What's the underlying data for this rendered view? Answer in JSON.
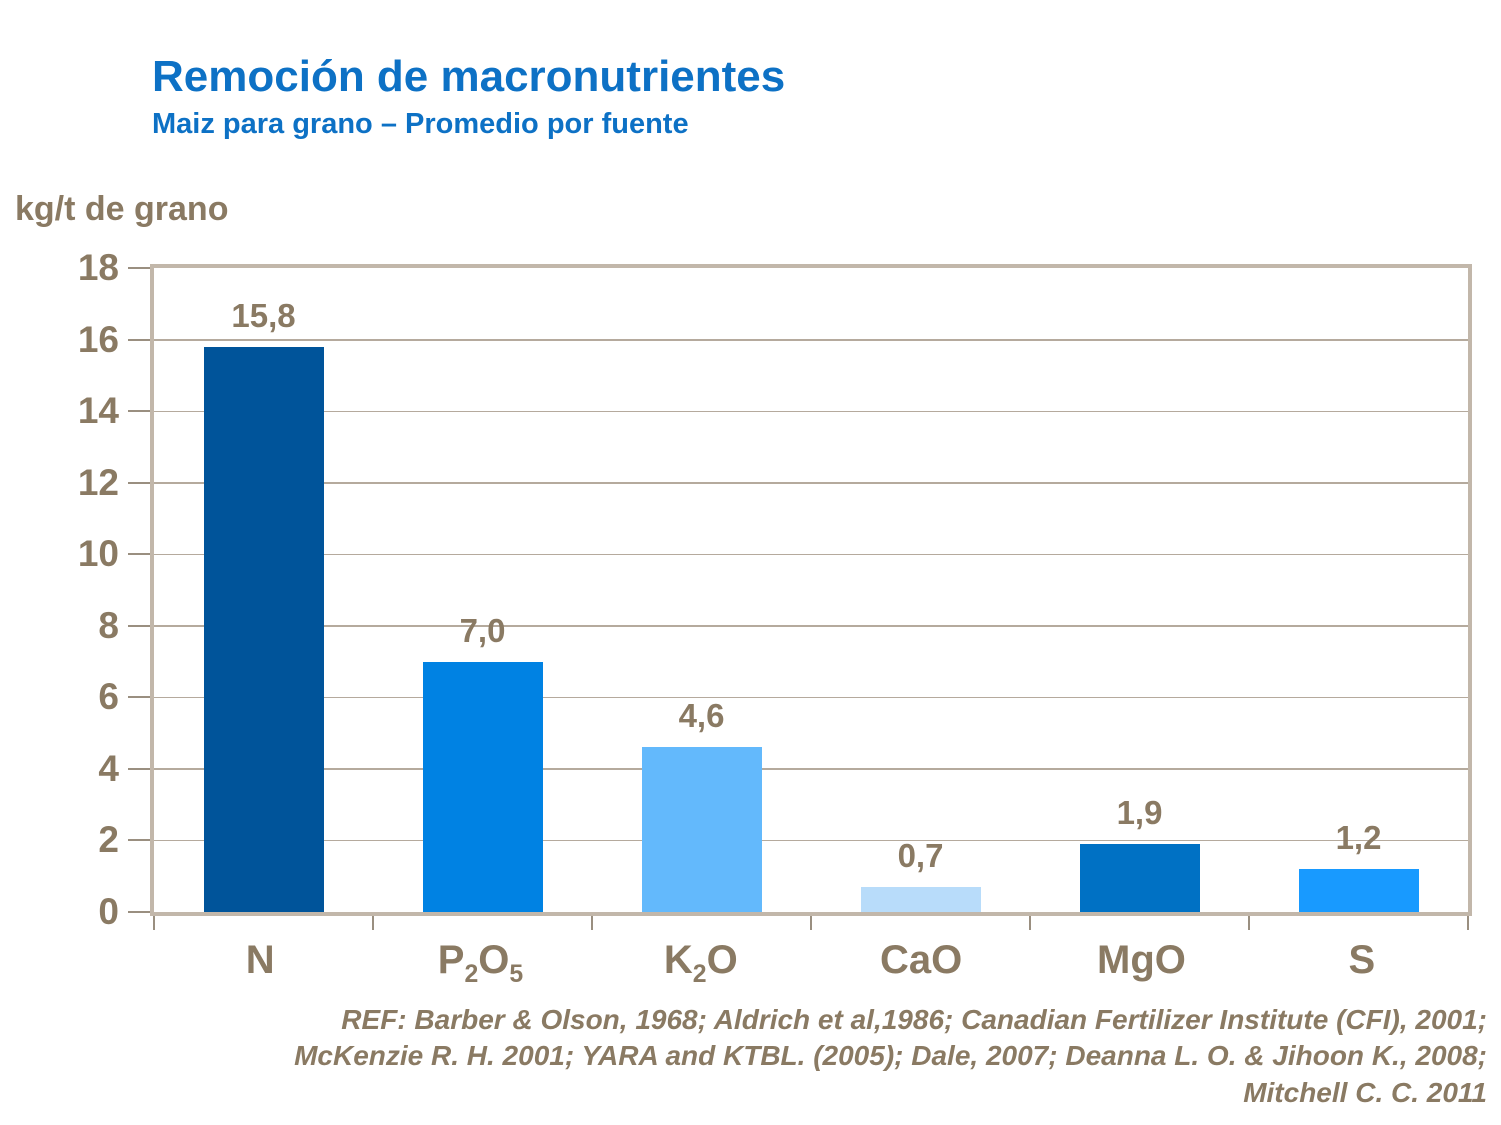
{
  "header": {
    "title": "Remoción de macronutrientes",
    "subtitle": "Maiz para grano – Promedio por fuente"
  },
  "colors": {
    "title_blue": "#0d71c5",
    "text_brown": "#8a7a63",
    "frame_tan": "#c2b7aa",
    "gridline_tan": "#b5aa9d"
  },
  "chart_data": {
    "type": "bar",
    "title": "Remoción de macronutrientes",
    "subtitle": "Maiz para grano – Promedio por fuente",
    "ylabel": "kg/t de grano",
    "xlabel": "",
    "ylim": [
      0,
      18
    ],
    "ytick_step": 2,
    "grid": true,
    "legend": false,
    "categories": [
      "N",
      "P~2~O~5~",
      "K~2~O",
      "CaO",
      "MgO",
      "S"
    ],
    "values": [
      15.8,
      7.0,
      4.6,
      0.7,
      1.9,
      1.2
    ],
    "value_labels": [
      "15,8",
      "7,0",
      "4,6",
      "0,7",
      "1,9",
      "1,2"
    ],
    "bar_colors": [
      "#00549a",
      "#0082e3",
      "#63b9fc",
      "#b8dcfa",
      "#0071c4",
      "#189aff"
    ]
  },
  "references": {
    "lines": [
      "REF: Barber & Olson, 1968; Aldrich et al,1986; Canadian Fertilizer Institute (CFI), 2001;",
      "McKenzie R. H. 2001; YARA and KTBL. (2005); Dale, 2007; Deanna L. O. & Jihoon K., 2008;",
      "Mitchell C. C. 2011"
    ]
  }
}
